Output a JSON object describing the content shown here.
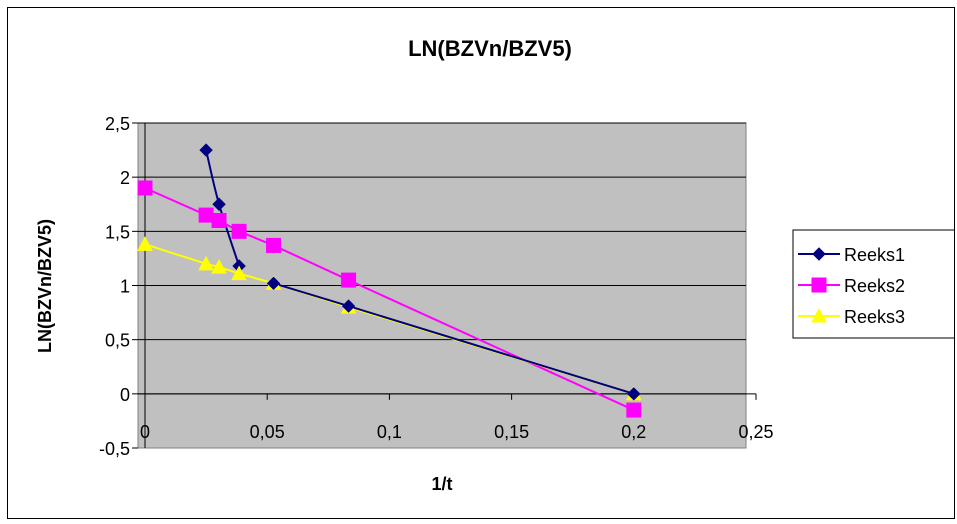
{
  "chart_data": {
    "type": "scatter",
    "title": "LN(BZVn/BZV5)",
    "xlabel": "1/t",
    "ylabel": "LN(BZVn/BZV5)",
    "xlim": [
      0,
      0.25
    ],
    "ylim": [
      -0.5,
      2.5
    ],
    "xticks": [
      "0",
      "0,05",
      "0,1",
      "0,15",
      "0,2",
      "0,25"
    ],
    "yticks": [
      "-0,5",
      "0",
      "0,5",
      "1",
      "1,5",
      "2",
      "2,5"
    ],
    "xtick_values": [
      0,
      0.05,
      0.1,
      0.15,
      0.2,
      0.25
    ],
    "ytick_values": [
      -0.5,
      0,
      0.5,
      1,
      1.5,
      2,
      2.5
    ],
    "grid": true,
    "legend_position": "right",
    "plot_background": "#c0c0c0",
    "series": [
      {
        "name": "Reeks1",
        "color": "#000080",
        "marker": "diamond",
        "line": "smooth",
        "x": [
          0.025,
          0.0303,
          0.0385
        ],
        "y": [
          2.25,
          1.75,
          1.18
        ]
      },
      {
        "name": "Reeks2",
        "color": "#ff00ff",
        "marker": "square",
        "line": "straight",
        "x": [
          0,
          0.025,
          0.0303,
          0.0385,
          0.0526,
          0.0833,
          0.2
        ],
        "y": [
          1.9,
          1.65,
          1.6,
          1.5,
          1.37,
          1.05,
          -0.15
        ]
      },
      {
        "name": "Reeks3",
        "color": "#ffff00",
        "marker": "triangle",
        "line": "straight",
        "x": [
          0,
          0.025,
          0.0303,
          0.0385,
          0.0526,
          0.0833,
          0.2
        ],
        "y": [
          1.38,
          1.2,
          1.17,
          1.11,
          1.02,
          0.8,
          0.0
        ]
      },
      {
        "name": "",
        "color": "#000080",
        "marker": "diamond",
        "line": "straight",
        "x": [
          0.0526,
          0.0833,
          0.2
        ],
        "y": [
          1.02,
          0.81,
          0.0
        ]
      }
    ]
  }
}
